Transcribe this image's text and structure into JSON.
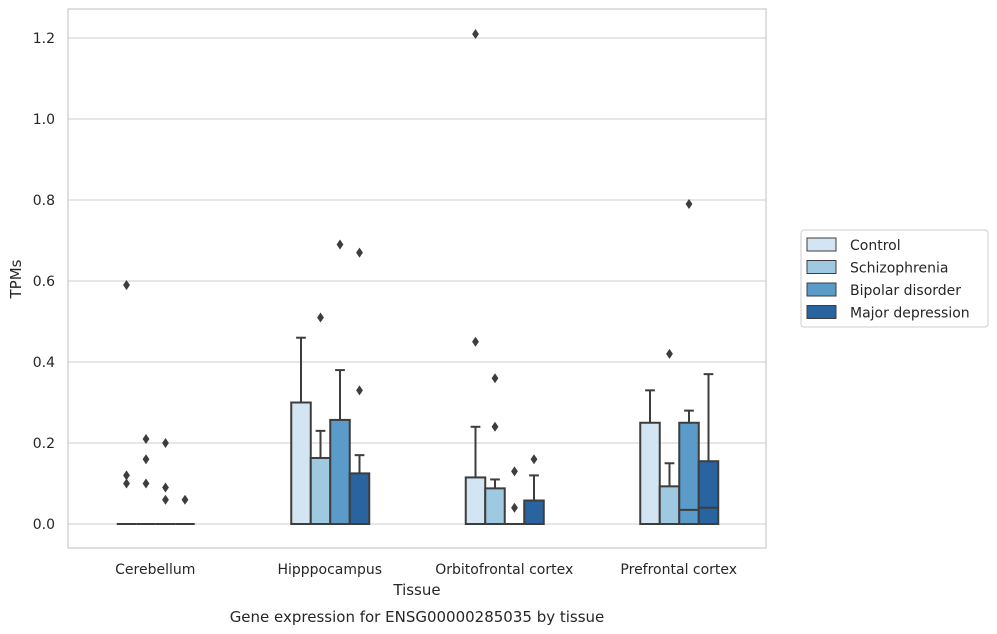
{
  "chart_data": {
    "type": "box",
    "title": "",
    "caption": "Gene expression for ENSG00000285035 by tissue",
    "xlabel": "Tissue",
    "ylabel": "TPMs",
    "ylim": [
      -0.06,
      1.27
    ],
    "yticks": [
      0.0,
      0.2,
      0.4,
      0.6,
      0.8,
      1.0,
      1.2
    ],
    "ytick_labels": [
      "0.0",
      "0.2",
      "0.4",
      "0.6",
      "0.8",
      "1.0",
      "1.2"
    ],
    "grid": "horizontal",
    "legend_position": "right",
    "categories": [
      "Cerebellum",
      "Hipppocampus",
      "Orbitofrontal cortex",
      "Prefrontal cortex"
    ],
    "series": [
      {
        "name": "Control",
        "color": "#d3e4f2",
        "boxes": [
          {
            "q1": 0,
            "median": 0,
            "q3": 0,
            "whisker_low": 0,
            "whisker_high": 0,
            "outliers": [
              0.59,
              0.12,
              0.1
            ]
          },
          {
            "q1": 0,
            "median": 0,
            "q3": 0.3,
            "whisker_low": 0,
            "whisker_high": 0.46,
            "outliers": []
          },
          {
            "q1": 0,
            "median": 0,
            "q3": 0.115,
            "whisker_low": 0,
            "whisker_high": 0.24,
            "outliers": [
              1.21,
              0.45
            ]
          },
          {
            "q1": 0,
            "median": 0,
            "q3": 0.25,
            "whisker_low": 0,
            "whisker_high": 0.33,
            "outliers": []
          }
        ]
      },
      {
        "name": "Schizophrenia",
        "color": "#9ec9e1",
        "boxes": [
          {
            "q1": 0,
            "median": 0,
            "q3": 0,
            "whisker_low": 0,
            "whisker_high": 0,
            "outliers": [
              0.21,
              0.16,
              0.1
            ]
          },
          {
            "q1": 0,
            "median": 0,
            "q3": 0.163,
            "whisker_low": 0,
            "whisker_high": 0.23,
            "outliers": [
              0.51
            ]
          },
          {
            "q1": 0,
            "median": 0,
            "q3": 0.088,
            "whisker_low": 0,
            "whisker_high": 0.11,
            "outliers": [
              0.36,
              0.24
            ]
          },
          {
            "q1": 0,
            "median": 0,
            "q3": 0.093,
            "whisker_low": 0,
            "whisker_high": 0.15,
            "outliers": [
              0.42
            ]
          }
        ]
      },
      {
        "name": "Bipolar disorder",
        "color": "#5b9bc9",
        "boxes": [
          {
            "q1": 0,
            "median": 0,
            "q3": 0,
            "whisker_low": 0,
            "whisker_high": 0,
            "outliers": [
              0.2,
              0.09,
              0.06
            ]
          },
          {
            "q1": 0,
            "median": 0,
            "q3": 0.257,
            "whisker_low": 0,
            "whisker_high": 0.38,
            "outliers": [
              0.69
            ]
          },
          {
            "q1": 0,
            "median": 0,
            "q3": 0,
            "whisker_low": 0,
            "whisker_high": 0,
            "outliers": [
              0.13,
              0.04
            ]
          },
          {
            "q1": 0,
            "median": 0.035,
            "q3": 0.25,
            "whisker_low": 0,
            "whisker_high": 0.28,
            "outliers": [
              0.79
            ]
          }
        ]
      },
      {
        "name": "Major depression",
        "color": "#2a64a0",
        "boxes": [
          {
            "q1": 0,
            "median": 0,
            "q3": 0,
            "whisker_low": 0,
            "whisker_high": 0,
            "outliers": [
              0.06
            ]
          },
          {
            "q1": 0,
            "median": 0,
            "q3": 0.125,
            "whisker_low": 0,
            "whisker_high": 0.17,
            "outliers": [
              0.67,
              0.33
            ]
          },
          {
            "q1": 0,
            "median": 0,
            "q3": 0.058,
            "whisker_low": 0,
            "whisker_high": 0.12,
            "outliers": [
              0.16
            ]
          },
          {
            "q1": 0,
            "median": 0.04,
            "q3": 0.155,
            "whisker_low": 0,
            "whisker_high": 0.37,
            "outliers": []
          }
        ]
      }
    ]
  }
}
